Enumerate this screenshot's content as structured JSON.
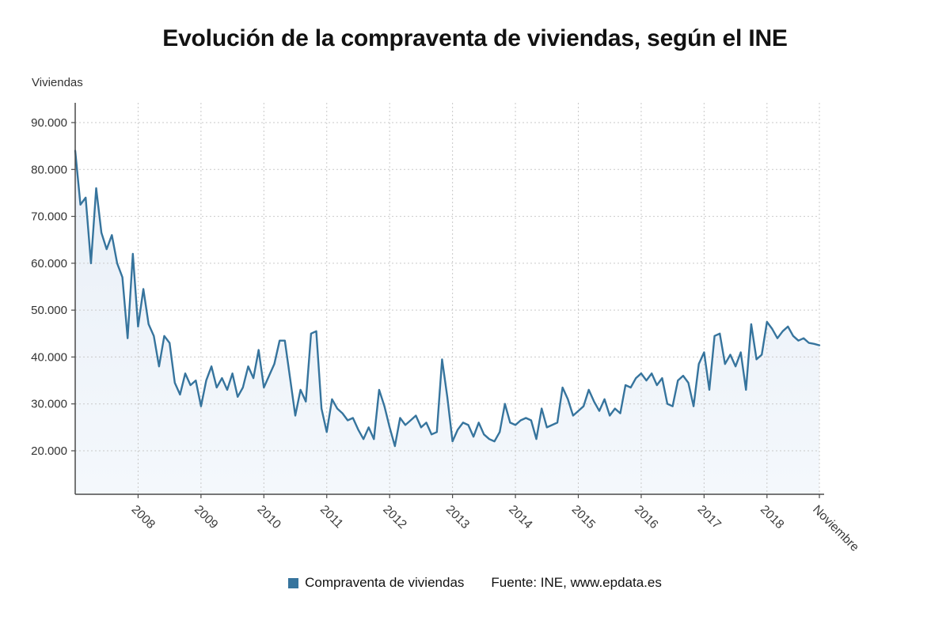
{
  "chart_data": {
    "type": "area",
    "title": "Evolución de la compraventa de viviendas, según el INE",
    "ylabel": "Viviendas",
    "ylim": [
      20000,
      90000
    ],
    "grid": true,
    "legend_position": "bottom",
    "source": "Fuente: INE, www.epdata.es",
    "colors": {
      "line": "#36749d",
      "fill_top": "#e9eff7",
      "fill_bottom": "#f4f8fc",
      "grid": "#c9c9c9",
      "axis": "#4a4a4a",
      "tick_text": "#333333"
    },
    "y_ticks": [
      {
        "label": "20.000",
        "value": 20000
      },
      {
        "label": "30.000",
        "value": 30000
      },
      {
        "label": "40.000",
        "value": 40000
      },
      {
        "label": "50.000",
        "value": 50000
      },
      {
        "label": "60.000",
        "value": 60000
      },
      {
        "label": "70.000",
        "value": 70000
      },
      {
        "label": "80.000",
        "value": 80000
      },
      {
        "label": "90.000",
        "value": 90000
      }
    ],
    "x_ticks": [
      {
        "label": "2008",
        "month": 12
      },
      {
        "label": "2009",
        "month": 24
      },
      {
        "label": "2010",
        "month": 36
      },
      {
        "label": "2011",
        "month": 48
      },
      {
        "label": "2012",
        "month": 60
      },
      {
        "label": "2013",
        "month": 72
      },
      {
        "label": "2014",
        "month": 84
      },
      {
        "label": "2015",
        "month": 96
      },
      {
        "label": "2016",
        "month": 108
      },
      {
        "label": "2017",
        "month": 120
      },
      {
        "label": "2018",
        "month": 132
      },
      {
        "label": "Noviembre",
        "month": 142
      }
    ],
    "series": [
      {
        "name": "Compraventa de viviendas",
        "values": [
          84000,
          72500,
          74000,
          60000,
          76000,
          66500,
          63000,
          66000,
          60000,
          57000,
          44000,
          62000,
          46500,
          54500,
          47000,
          44500,
          38000,
          44500,
          43000,
          34500,
          32000,
          36500,
          34000,
          35000,
          29500,
          35000,
          38000,
          33500,
          35500,
          33000,
          36500,
          31500,
          33500,
          38000,
          35500,
          41500,
          33500,
          36000,
          38500,
          43500,
          43500,
          35500,
          27500,
          33000,
          30500,
          45000,
          45500,
          29000,
          24000,
          31000,
          29000,
          28000,
          26500,
          27000,
          24500,
          22500,
          25000,
          22500,
          33000,
          29500,
          25000,
          21000,
          27000,
          25500,
          26500,
          27500,
          25000,
          26000,
          23500,
          24000,
          39500,
          31500,
          22000,
          24500,
          26000,
          25500,
          23000,
          26000,
          23500,
          22500,
          22000,
          24000,
          30000,
          26000,
          25500,
          26500,
          27000,
          26500,
          22500,
          29000,
          25000,
          25500,
          26000,
          33500,
          31000,
          27500,
          28500,
          29500,
          33000,
          30500,
          28500,
          31000,
          27500,
          29000,
          28000,
          34000,
          33500,
          35500,
          36500,
          35000,
          36500,
          34000,
          35500,
          30000,
          29500,
          35000,
          36000,
          34500,
          29500,
          38500,
          41000,
          33000,
          44500,
          45000,
          38500,
          40500,
          38000,
          41000,
          33000,
          47000,
          39500,
          40500,
          47500,
          46000,
          44000,
          45500,
          46500,
          44500,
          43500,
          44000,
          43000,
          42800,
          42500
        ]
      }
    ]
  }
}
